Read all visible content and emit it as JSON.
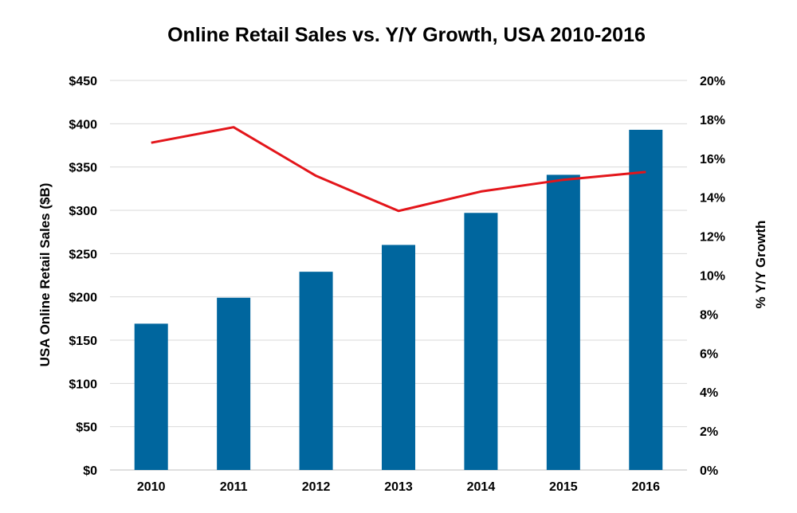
{
  "chart_data": {
    "type": "bar",
    "title": "Online Retail Sales vs. Y/Y Growth, USA 2010-2016",
    "categories": [
      "2010",
      "2011",
      "2012",
      "2013",
      "2014",
      "2015",
      "2016"
    ],
    "series": [
      {
        "name": "USA Online Retail Sales ($B)",
        "type": "bar",
        "axis": "left",
        "values": [
          169,
          199,
          229,
          260,
          297,
          341,
          393
        ],
        "color": "#00669e"
      },
      {
        "name": "% Y/Y Growth",
        "type": "line",
        "axis": "right",
        "values": [
          16.8,
          17.6,
          15.1,
          13.3,
          14.3,
          14.9,
          15.3
        ],
        "color": "#e3151a"
      }
    ],
    "ylabel_left": "USA Online Retail Sales ($B)",
    "ylabel_right": "% Y/Y Growth",
    "ylim_left": [
      0,
      450
    ],
    "ylim_right": [
      0,
      20
    ],
    "yticks_left": [
      "$0",
      "$50",
      "$100",
      "$150",
      "$200",
      "$250",
      "$300",
      "$350",
      "$400",
      "$450"
    ],
    "yticks_right": [
      "0%",
      "2%",
      "4%",
      "6%",
      "8%",
      "10%",
      "12%",
      "14%",
      "16%",
      "18%",
      "20%"
    ],
    "grid": true,
    "gridline_color": "#d9d9d9"
  }
}
